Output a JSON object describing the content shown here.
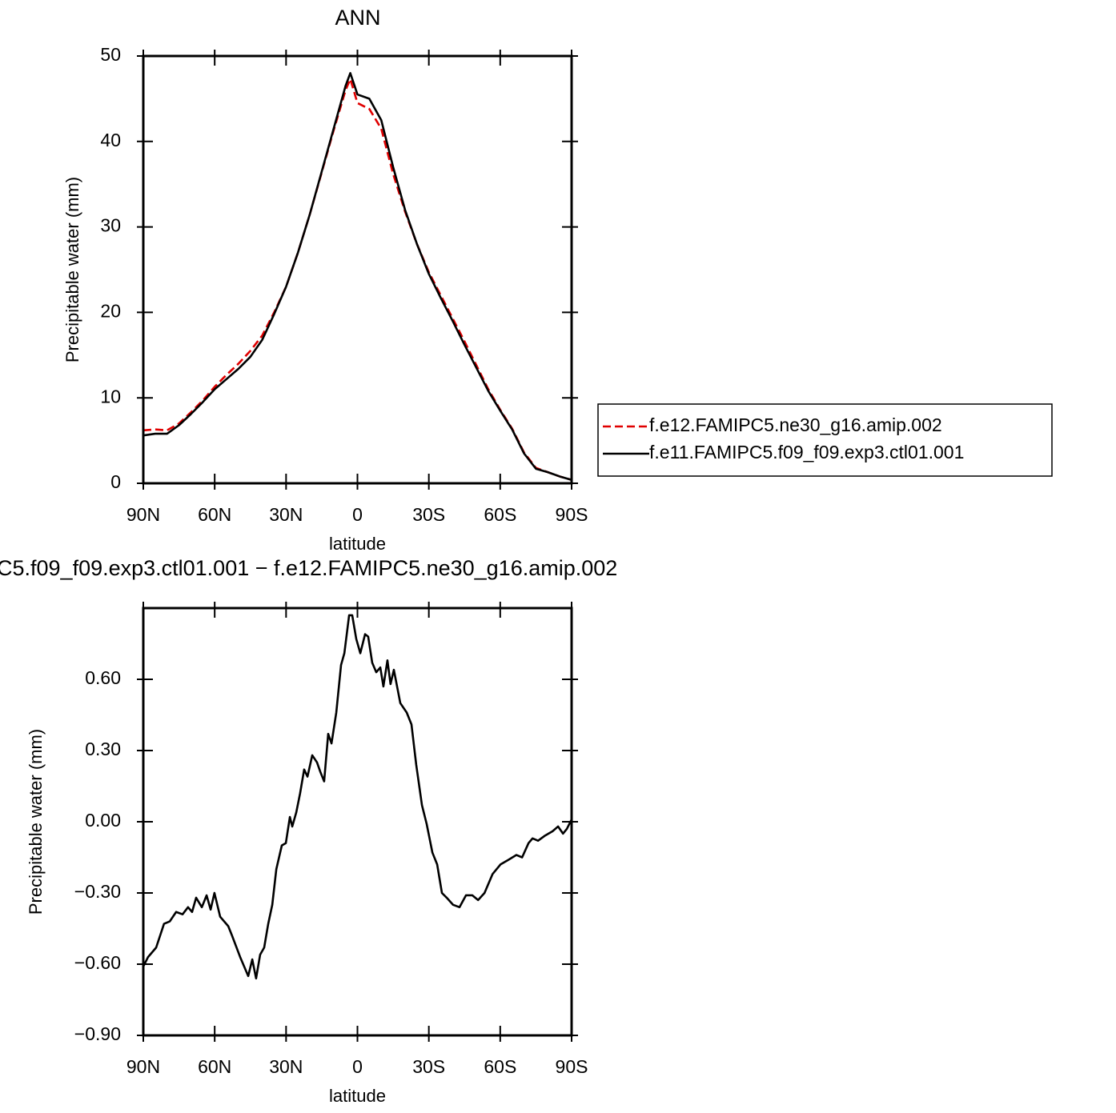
{
  "chart_data": [
    {
      "type": "line",
      "title": "ANN",
      "x_label": "latitude",
      "y_label": "Precipitable water (mm)",
      "x": [
        90,
        85,
        80,
        75,
        70,
        65,
        60,
        55,
        50,
        45,
        40,
        35,
        30,
        25,
        20,
        15,
        10,
        5,
        3,
        0,
        -5,
        -10,
        -15,
        -20,
        -25,
        -30,
        -35,
        -40,
        -45,
        -50,
        -55,
        -60,
        -65,
        -70,
        -75,
        -80,
        -85,
        -90
      ],
      "series": [
        {
          "name": "f.e12.FAMIPC5.ne30_g16.amip.002",
          "color": "#e00000",
          "style": "dashed",
          "values": [
            6.2,
            6.3,
            6.2,
            7.0,
            8.3,
            9.7,
            11.3,
            12.7,
            14.0,
            15.5,
            17.3,
            20.0,
            23.0,
            27.0,
            31.5,
            36.4,
            41.3,
            46.0,
            47.3,
            44.5,
            43.8,
            41.5,
            36.2,
            31.8,
            28.0,
            24.7,
            22.0,
            19.3,
            16.6,
            13.8,
            11.0,
            8.6,
            6.4,
            3.6,
            1.8,
            1.3,
            0.8,
            0.4
          ]
        },
        {
          "name": "f.e11.FAMIPC5.f09_f09.exp3.ctl01.001",
          "color": "#000000",
          "style": "solid",
          "values": [
            5.6,
            5.8,
            5.8,
            6.8,
            8.1,
            9.5,
            11.0,
            12.2,
            13.4,
            14.8,
            16.8,
            19.8,
            23.0,
            27.0,
            31.5,
            36.5,
            41.5,
            46.5,
            48.0,
            45.5,
            45.0,
            42.5,
            37.0,
            32.0,
            28.0,
            24.5,
            21.7,
            19.0,
            16.2,
            13.5,
            10.8,
            8.5,
            6.3,
            3.5,
            1.7,
            1.3,
            0.8,
            0.4
          ]
        }
      ],
      "xlim": [
        90,
        -90
      ],
      "xticks": [
        {
          "value": 90,
          "label": "90N"
        },
        {
          "value": 60,
          "label": "60N"
        },
        {
          "value": 30,
          "label": "30N"
        },
        0,
        {
          "value": -30,
          "label": "30S"
        },
        {
          "value": -60,
          "label": "60S"
        },
        {
          "value": -90,
          "label": "90S"
        }
      ],
      "ylim": [
        0,
        50
      ],
      "yticks": [
        0,
        10,
        20,
        30,
        40,
        50
      ],
      "grid": false,
      "legend": "right"
    },
    {
      "type": "line",
      "title": "C5.f09_f09.exp3.ctl01.001 − f.e12.FAMIPC5.ne30_g16.amip.002",
      "x_label": "latitude",
      "y_label": "Precipitable water (mm)",
      "x": [
        90,
        88,
        84.6,
        81.3,
        78.9,
        76.2,
        73.5,
        71.2,
        69.5,
        67.8,
        65.4,
        63.4,
        61.7,
        60.1,
        57.7,
        54.3,
        52.7,
        49.3,
        45.9,
        44.2,
        42.6,
        40.9,
        39.2,
        37.5,
        35.8,
        34.1,
        31.8,
        30.1,
        28.4,
        27.4,
        25.7,
        24.1,
        22.4,
        21.0,
        19.0,
        17.0,
        15.6,
        14.0,
        12.3,
        10.9,
        8.9,
        6.9,
        5.5,
        3.5,
        2.2,
        0.5,
        -1.2,
        -3.2,
        -4.5,
        -6.2,
        -7.9,
        -9.6,
        -10.9,
        -12.6,
        -13.9,
        -15.3,
        -18.0,
        -20.7,
        -22.7,
        -24.7,
        -27.1,
        -29.1,
        -31.5,
        -33.5,
        -35.5,
        -37.5,
        -40.2,
        -42.9,
        -45.6,
        -48.3,
        -50.7,
        -53.4,
        -56.8,
        -60.1,
        -63.5,
        -66.8,
        -69.2,
        -71.9,
        -73.6,
        -75.9,
        -78.6,
        -82.0,
        -84.3,
        -86.4,
        -88.0,
        -90
      ],
      "series": [
        {
          "color": "#000000",
          "style": "solid",
          "values": [
            -0.61,
            -0.57,
            -0.53,
            -0.43,
            -0.42,
            -0.38,
            -0.39,
            -0.36,
            -0.38,
            -0.32,
            -0.36,
            -0.31,
            -0.37,
            -0.3,
            -0.4,
            -0.44,
            -0.48,
            -0.57,
            -0.65,
            -0.58,
            -0.66,
            -0.56,
            -0.53,
            -0.43,
            -0.35,
            -0.2,
            -0.1,
            -0.09,
            0.02,
            -0.02,
            0.04,
            0.12,
            0.22,
            0.19,
            0.28,
            0.25,
            0.21,
            0.17,
            0.37,
            0.33,
            0.46,
            0.66,
            0.71,
            0.87,
            0.87,
            0.77,
            0.71,
            0.79,
            0.78,
            0.67,
            0.63,
            0.65,
            0.57,
            0.68,
            0.58,
            0.64,
            0.5,
            0.46,
            0.41,
            0.24,
            0.07,
            -0.01,
            -0.13,
            -0.18,
            -0.3,
            -0.32,
            -0.35,
            -0.36,
            -0.31,
            -0.31,
            -0.33,
            -0.3,
            -0.22,
            -0.18,
            -0.16,
            -0.14,
            -0.15,
            -0.09,
            -0.07,
            -0.08,
            -0.06,
            -0.04,
            -0.02,
            -0.05,
            -0.03,
            0.01
          ]
        }
      ],
      "xlim": [
        90,
        -90
      ],
      "xticks": [
        {
          "value": 90,
          "label": "90N"
        },
        {
          "value": 60,
          "label": "60N"
        },
        {
          "value": 30,
          "label": "30N"
        },
        0,
        {
          "value": -30,
          "label": "30S"
        },
        {
          "value": -60,
          "label": "60S"
        },
        {
          "value": -90,
          "label": "90S"
        }
      ],
      "ylim": [
        -0.9,
        0.9
      ],
      "yticks": [
        {
          "value": -0.9,
          "label": "−0.90"
        },
        {
          "value": -0.6,
          "label": "−0.60"
        },
        {
          "value": -0.3,
          "label": "−0.30"
        },
        {
          "value": 0,
          "label": "0.00"
        },
        {
          "value": 0.3,
          "label": "0.30"
        },
        {
          "value": 0.6,
          "label": "0.60"
        }
      ],
      "grid": false
    }
  ]
}
